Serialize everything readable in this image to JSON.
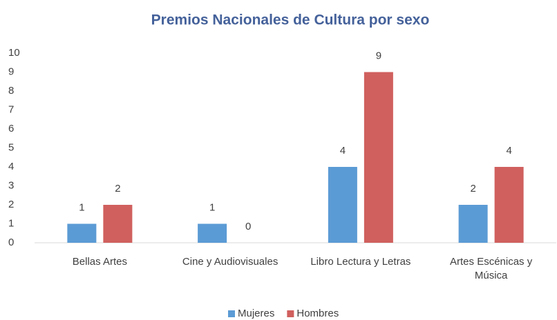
{
  "chart_data": {
    "type": "bar",
    "title": "Premios Nacionales de Cultura por sexo",
    "categories": [
      "Bellas Artes",
      "Cine y Audiovisuales",
      "Libro Lectura y Letras",
      "Artes Escénicas y Música"
    ],
    "series": [
      {
        "name": "Mujeres",
        "color": "#5b9bd5",
        "values": [
          1,
          1,
          4,
          2
        ]
      },
      {
        "name": "Hombres",
        "color": "#d0605e",
        "values": [
          2,
          0,
          9,
          4
        ]
      }
    ],
    "ylim": [
      0,
      10
    ],
    "yticks": [
      0,
      1,
      2,
      3,
      4,
      5,
      6,
      7,
      8,
      9,
      10
    ],
    "grid": false,
    "legend": "bottom"
  }
}
